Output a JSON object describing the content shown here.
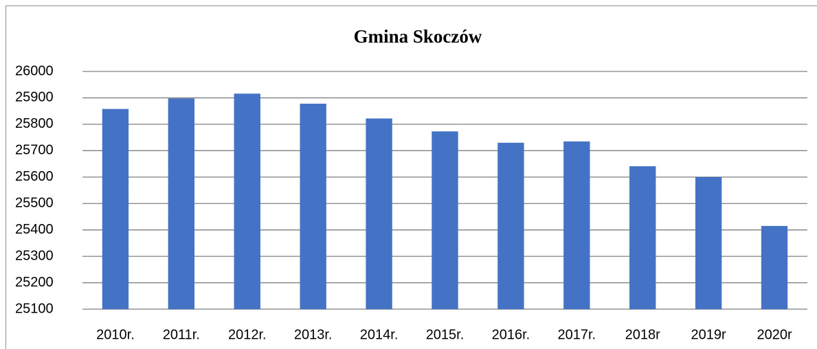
{
  "chart_data": {
    "type": "bar",
    "title": "Gmina Skoczów",
    "categories": [
      "2010r.",
      "2011r.",
      "2012r.",
      "2013r.",
      "2014r.",
      "2015r.",
      "2016r.",
      "2017r.",
      "2018r",
      "2019r",
      "2020r"
    ],
    "values": [
      25858,
      25898,
      25916,
      25878,
      25822,
      25773,
      25730,
      25735,
      25641,
      25600,
      25415
    ],
    "color": "#4472c4",
    "ylim": [
      25100,
      26000
    ],
    "yticks": [
      25100,
      25200,
      25300,
      25400,
      25500,
      25600,
      25700,
      25800,
      25900,
      26000
    ],
    "grid": true
  }
}
